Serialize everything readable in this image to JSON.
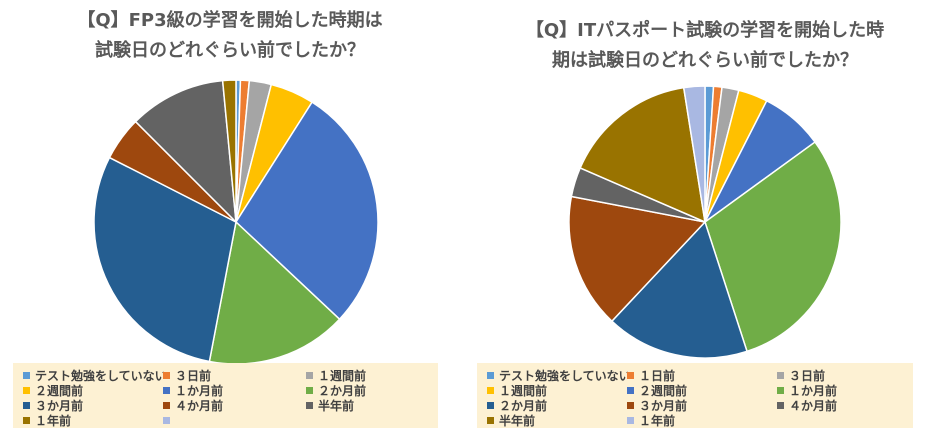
{
  "chart_data": [
    {
      "type": "pie",
      "title": [
        "【Q】FP3級の学習を開始した時期は",
        "試験日のどれぐらい前でしたか？"
      ],
      "slices": [
        {
          "label": "テスト勉強をしていない",
          "value": 0.5,
          "color": "#5b9bd5"
        },
        {
          "label": "３日前",
          "value": 1.0,
          "color": "#ed7d31"
        },
        {
          "label": "１週間前",
          "value": 2.5,
          "color": "#a5a5a5"
        },
        {
          "label": "２週間前",
          "value": 5.0,
          "color": "#ffc000"
        },
        {
          "label": "１か月前",
          "value": 28.0,
          "color": "#4472c4"
        },
        {
          "label": "２か月前",
          "value": 16.0,
          "color": "#70ad47"
        },
        {
          "label": "３か月前",
          "value": 29.5,
          "color": "#255e91"
        },
        {
          "label": "４か月前",
          "value": 5.0,
          "color": "#9e480e"
        },
        {
          "label": "半年前",
          "value": 11.0,
          "color": "#636363"
        },
        {
          "label": "１年前",
          "value": 1.5,
          "color": "#997300"
        },
        {
          "label": "",
          "value": 0.0,
          "color": "#a9b8e2"
        }
      ],
      "legend_position": "bottom"
    },
    {
      "type": "pie",
      "title": [
        "【Q】ITパスポート試験の学習を開始した時",
        "期は試験日のどれぐらい前でしたか？"
      ],
      "slices": [
        {
          "label": "テスト勉強をしていない",
          "value": 1.0,
          "color": "#5b9bd5"
        },
        {
          "label": "１日前",
          "value": 1.0,
          "color": "#ed7d31"
        },
        {
          "label": "３日前",
          "value": 2.0,
          "color": "#a5a5a5"
        },
        {
          "label": "１週間前",
          "value": 3.5,
          "color": "#ffc000"
        },
        {
          "label": "２週間前",
          "value": 7.5,
          "color": "#4472c4"
        },
        {
          "label": "１か月前",
          "value": 30.0,
          "color": "#70ad47"
        },
        {
          "label": "２か月前",
          "value": 17.0,
          "color": "#255e91"
        },
        {
          "label": "３か月前",
          "value": 16.0,
          "color": "#9e480e"
        },
        {
          "label": "４か月前",
          "value": 3.5,
          "color": "#636363"
        },
        {
          "label": "半年前",
          "value": 16.0,
          "color": "#997300"
        },
        {
          "label": "１年前",
          "value": 2.5,
          "color": "#a9b8e2"
        }
      ],
      "legend_position": "bottom"
    }
  ]
}
